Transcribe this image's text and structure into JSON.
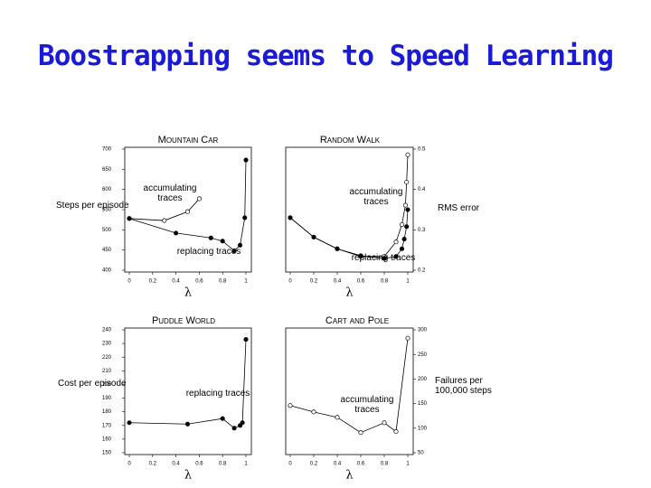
{
  "title": "Boostrapping seems to Speed Learning",
  "chart_data": [
    {
      "type": "line",
      "title": "Mountain Car",
      "ylabel": "Steps per episode",
      "xlabel": "λ",
      "yaxis": "left",
      "xlim": [
        0,
        1
      ],
      "xticks": [
        0,
        0.2,
        0.4,
        0.6,
        0.8,
        1
      ],
      "ylim": [
        400,
        700
      ],
      "yticks": [
        400,
        450,
        500,
        550,
        600,
        650,
        700
      ],
      "series": [
        {
          "name": "accumulating traces",
          "color": "#000000",
          "marker": "open",
          "x": [
            0,
            0.3,
            0.5,
            0.6
          ],
          "values": [
            528,
            523,
            545,
            577
          ]
        },
        {
          "name": "replacing traces",
          "color": "#000000",
          "marker": "filled",
          "x": [
            0,
            0.4,
            0.7,
            0.8,
            0.9,
            0.95,
            0.99,
            1
          ],
          "values": [
            528,
            492,
            480,
            472,
            448,
            462,
            530,
            673
          ]
        }
      ]
    },
    {
      "type": "line",
      "title": "Random Walk",
      "ylabel": "RMS error",
      "xlabel": "λ",
      "yaxis": "right",
      "xlim": [
        0,
        1
      ],
      "xticks": [
        0,
        0.2,
        0.4,
        0.6,
        0.8,
        1
      ],
      "ylim": [
        0.2,
        0.5
      ],
      "yticks": [
        0.2,
        0.3,
        0.4,
        0.5
      ],
      "series": [
        {
          "name": "accumulating traces",
          "color": "#000000",
          "marker": "open",
          "x": [
            0,
            0.2,
            0.4,
            0.6,
            0.8,
            0.9,
            0.95,
            0.98,
            0.99,
            1
          ],
          "values": [
            0.33,
            0.282,
            0.253,
            0.234,
            0.234,
            0.27,
            0.313,
            0.361,
            0.418,
            0.486
          ]
        },
        {
          "name": "replacing traces",
          "color": "#000000",
          "marker": "filled",
          "x": [
            0,
            0.2,
            0.4,
            0.6,
            0.8,
            0.9,
            0.95,
            0.97,
            0.99,
            1
          ],
          "values": [
            0.33,
            0.282,
            0.253,
            0.236,
            0.229,
            0.234,
            0.253,
            0.277,
            0.308,
            0.35
          ]
        }
      ]
    },
    {
      "type": "line",
      "title": "Puddle World",
      "ylabel": "Cost per episode",
      "xlabel": "λ",
      "yaxis": "left",
      "xlim": [
        0,
        1
      ],
      "xticks": [
        0,
        0.2,
        0.4,
        0.6,
        0.8,
        1
      ],
      "ylim": [
        150,
        240
      ],
      "yticks": [
        150,
        160,
        170,
        180,
        190,
        200,
        210,
        220,
        230,
        240
      ],
      "series": [
        {
          "name": "replacing traces",
          "color": "#000000",
          "marker": "filled",
          "x": [
            0,
            0.5,
            0.8,
            0.9,
            0.95,
            0.97,
            1
          ],
          "values": [
            172,
            171,
            175,
            168,
            170,
            172,
            233
          ]
        }
      ]
    },
    {
      "type": "line",
      "title": "Cart and Pole",
      "ylabel": "Failures per 100,000 steps",
      "xlabel": "λ",
      "yaxis": "right",
      "xlim": [
        0,
        1
      ],
      "xticks": [
        0,
        0.2,
        0.4,
        0.6,
        0.8,
        1
      ],
      "ylim": [
        50,
        300
      ],
      "yticks": [
        50,
        100,
        150,
        200,
        250,
        300
      ],
      "series": [
        {
          "name": "accumulating traces",
          "color": "#000000",
          "marker": "open",
          "x": [
            0,
            0.2,
            0.4,
            0.6,
            0.8,
            0.9,
            1
          ],
          "values": [
            146,
            133,
            122,
            91,
            111,
            93,
            283
          ]
        }
      ]
    }
  ]
}
